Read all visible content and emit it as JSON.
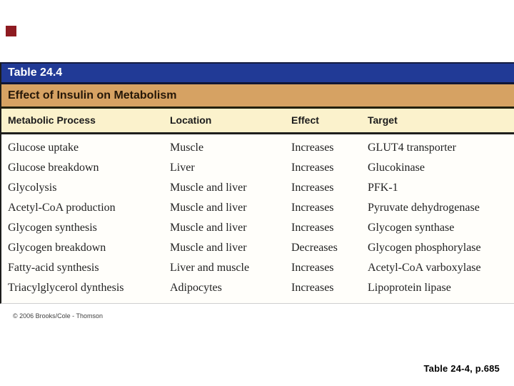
{
  "slide": {
    "background": "#ffffff",
    "marker_color": "#8e1b21"
  },
  "chart_data": {
    "type": "table",
    "title": "Table 24.4",
    "subtitle": "Effect of Insulin on Metabolism",
    "columns": [
      "Metabolic Process",
      "Location",
      "Effect",
      "Target"
    ],
    "rows": [
      [
        "Glucose uptake",
        "Muscle",
        "Increases",
        "GLUT4 transporter"
      ],
      [
        "Glucose breakdown",
        "Liver",
        "Increases",
        "Glucokinase"
      ],
      [
        "Glycolysis",
        "Muscle and liver",
        "Increases",
        "PFK-1"
      ],
      [
        "Acetyl-CoA production",
        "Muscle and liver",
        "Increases",
        "Pyruvate dehydrogenase"
      ],
      [
        "Glycogen synthesis",
        "Muscle and liver",
        "Increases",
        "Glycogen synthase"
      ],
      [
        "Glycogen breakdown",
        "Muscle and liver",
        "Decreases",
        "Glycogen phosphorylase"
      ],
      [
        "Fatty-acid synthesis",
        "Liver and muscle",
        "Increases",
        "Acetyl-CoA varboxylase"
      ],
      [
        "Triacylglycerol dynthesis",
        "Adipocytes",
        "Increases",
        "Lipoprotein lipase"
      ]
    ],
    "layout": {
      "title_bar_color": "#213a96",
      "subtitle_bar_color": "#d6a263",
      "header_bar_color": "#fbf2cc",
      "body_color": "#fffefa",
      "grid": "off",
      "legend": "none"
    }
  },
  "footer": {
    "copyright": "© 2006 Brooks/Cole - Thomson",
    "caption": "Table 24-4, p.685"
  }
}
